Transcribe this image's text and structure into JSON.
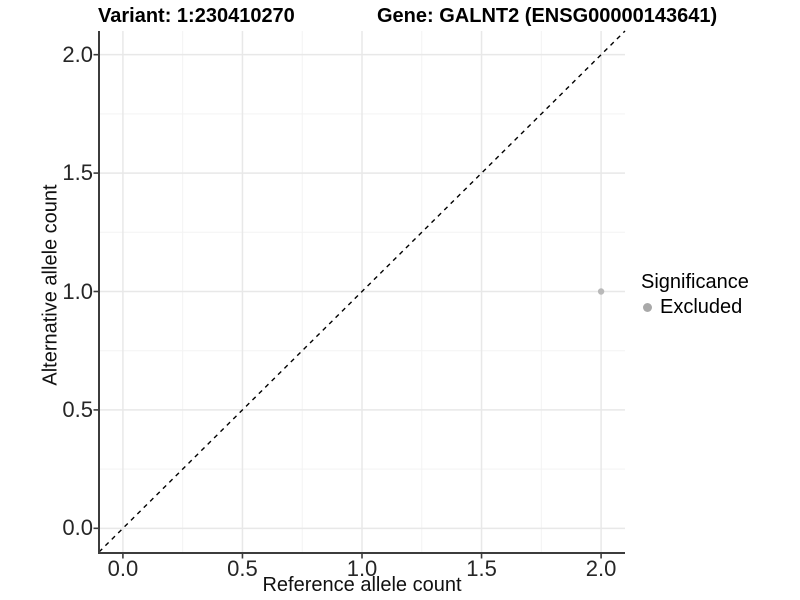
{
  "chart_data": {
    "type": "scatter",
    "title_left": "Variant: 1:230410270",
    "title_right": "Gene: GALNT2 (ENSG00000143641)",
    "xlabel": "Reference allele count",
    "ylabel": "Alternative allele count",
    "xlim": [
      -0.1,
      2.1
    ],
    "ylim": [
      -0.1,
      2.1
    ],
    "x_ticks": [
      "0.0",
      "0.5",
      "1.0",
      "1.5",
      "2.0"
    ],
    "y_ticks": [
      "0.0",
      "0.5",
      "1.0",
      "1.5",
      "2.0"
    ],
    "grid": {
      "major": true,
      "minor": true,
      "major_color": "#e8e8e8",
      "minor_color": "#f3f3f3"
    },
    "reference_line": {
      "type": "identity y=x",
      "style": "dashed",
      "color": "#000000",
      "from": [
        -0.1,
        -0.1
      ],
      "to": [
        2.1,
        2.1
      ]
    },
    "series": [
      {
        "name": "Excluded",
        "color": "#b9b9b9",
        "points": [
          {
            "x": 2.0,
            "y": 1.0
          }
        ]
      }
    ],
    "legend": {
      "title": "Significance",
      "position": "right",
      "entries": [
        {
          "label": "Excluded",
          "color": "#a9a9a9",
          "marker": "circle"
        }
      ]
    },
    "background": "#ffffff",
    "axis_color": "#3c3c3c"
  }
}
